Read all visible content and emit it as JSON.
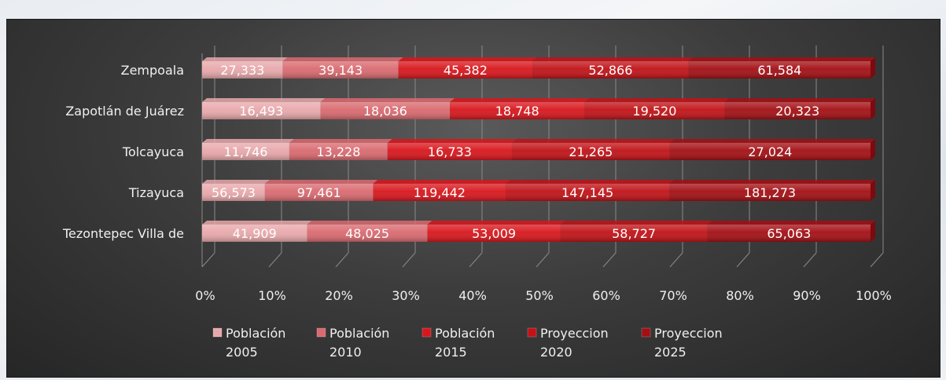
{
  "chart_data": {
    "type": "bar",
    "orientation": "horizontal",
    "stacked": "percent",
    "categories": [
      "Zempoala",
      "Zapotlán de Juárez",
      "Tolcayuca",
      "Tizayuca",
      "Tezontepec Villa de"
    ],
    "series": [
      {
        "name": "Población 2005",
        "values": [
          27333,
          16493,
          11746,
          56573,
          41909
        ],
        "labels": [
          "27,333",
          "16,493",
          "11,746",
          "56,573",
          "41,909"
        ],
        "color": "#e8a8ab"
      },
      {
        "name": "Población 2010",
        "values": [
          39143,
          18036,
          13228,
          97461,
          48025
        ],
        "labels": [
          "39,143",
          "18,036",
          "13,228",
          "97,461",
          "48,025"
        ],
        "color": "#d96a70"
      },
      {
        "name": "Población 2015",
        "values": [
          45382,
          18748,
          16733,
          119442,
          53009
        ],
        "labels": [
          "45,382",
          "18,748",
          "16,733",
          "119,442",
          "53,009"
        ],
        "color": "#d8161c"
      },
      {
        "name": "Proyeccion 2020",
        "values": [
          52866,
          19520,
          21265,
          147145,
          58727
        ],
        "labels": [
          "52,866",
          "19,520",
          "21,265",
          "147,145",
          "58,727"
        ],
        "color": "#c01217"
      },
      {
        "name": "Proyeccion 2025",
        "values": [
          61584,
          20323,
          27024,
          181273,
          65063
        ],
        "labels": [
          "61,584",
          "20,323",
          "27,024",
          "181,273",
          "65,063"
        ],
        "color": "#a30f14"
      }
    ],
    "xticks": [
      "0%",
      "10%",
      "20%",
      "30%",
      "40%",
      "50%",
      "60%",
      "70%",
      "80%",
      "90%",
      "100%"
    ],
    "xlim": [
      0,
      100
    ],
    "grid": true,
    "legend_position": "bottom"
  },
  "legend": [
    {
      "line1": "Población",
      "line2": "2005"
    },
    {
      "line1": "Población",
      "line2": "2010"
    },
    {
      "line1": "Población",
      "line2": "2015"
    },
    {
      "line1": "Proyeccion",
      "line2": "2020"
    },
    {
      "line1": "Proyeccion",
      "line2": "2025"
    }
  ]
}
